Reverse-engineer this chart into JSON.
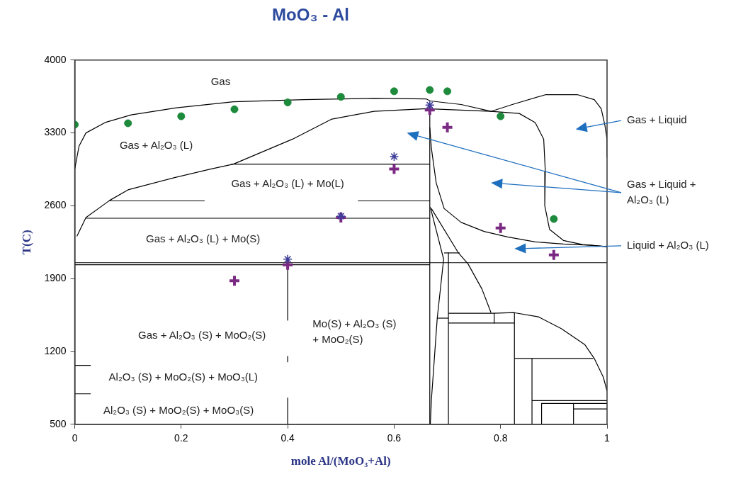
{
  "chart_data": {
    "type": "line",
    "title": "MoO₃ - Al",
    "xlabel": "mole Al/(MoO₃+Al)",
    "ylabel": "T(C)",
    "xlim": [
      0,
      1
    ],
    "xticks": [
      0,
      0.2,
      0.4,
      0.6,
      0.8,
      1
    ],
    "ylim": [
      500,
      4000
    ],
    "yticks": [
      500,
      1200,
      1900,
      2600,
      3300,
      4000
    ],
    "grid": false,
    "legend": false,
    "series": [
      {
        "color": "#000000",
        "x": [
          0,
          0.008,
          0.021,
          0.057,
          0.106,
          0.189,
          0.298,
          0.43,
          0.562,
          0.66,
          0.668,
          0.726,
          0.782,
          0.822,
          0.884,
          0.945,
          0.976,
          0.989,
          0.996,
          1,
          1
        ],
        "values": [
          2953,
          3173,
          3300,
          3400,
          3473,
          3540,
          3600,
          3620,
          3633,
          3627,
          3607,
          3573,
          3507,
          3573,
          3667,
          3667,
          3620,
          3533,
          3373,
          3240,
          3067
        ]
      },
      {
        "color": "#000000",
        "x": [
          0.004,
          0.021,
          0.066,
          0.1,
          0.189,
          0.255,
          0.298,
          0.409,
          0.483,
          0.562,
          0.66,
          0.782,
          0.835,
          0.865,
          0.881,
          0.884,
          0.883,
          0.892,
          0.918,
          0.954,
          1
        ],
        "values": [
          2307,
          2487,
          2653,
          2753,
          2873,
          2953,
          3000,
          3240,
          3433,
          3507,
          3533,
          3507,
          3487,
          3400,
          3240,
          2933,
          2600,
          2373,
          2267,
          2227,
          2207
        ]
      },
      {
        "color": "#000000",
        "x": [
          0.667,
          0.67,
          0.679,
          0.694,
          0.726,
          0.769,
          0.813,
          0.865,
          0.918,
          0.971,
          1
        ],
        "values": [
          3353,
          3153,
          2820,
          2573,
          2440,
          2353,
          2300,
          2253,
          2233,
          2220,
          2207
        ]
      },
      {
        "color": "#000000",
        "x": [
          0.294,
          0.667
        ],
        "values": [
          3000,
          3000
        ]
      },
      {
        "color": "#000000",
        "x": [
          0.063,
          0.244
        ],
        "values": [
          2647,
          2647
        ]
      },
      {
        "color": "#000000",
        "x": [
          0.532,
          0.667
        ],
        "values": [
          2647,
          2647
        ]
      },
      {
        "color": "#000000",
        "x": [
          0.021,
          0.667
        ],
        "values": [
          2480,
          2480
        ]
      },
      {
        "color": "#000000",
        "x": [
          0.667,
          0.667
        ],
        "values": [
          3533,
          500
        ]
      },
      {
        "color": "#000000",
        "x": [
          0,
          1
        ],
        "values": [
          2053,
          2053
        ]
      },
      {
        "color": "#000000",
        "x": [
          0,
          0.667
        ],
        "values": [
          2033,
          2033
        ]
      },
      {
        "color": "#000000",
        "x": [
          0.4,
          0.4
        ],
        "values": [
          2033,
          1500
        ]
      },
      {
        "color": "#000000",
        "x": [
          0.4,
          0.4
        ],
        "values": [
          1153,
          1100
        ]
      },
      {
        "color": "#000000",
        "x": [
          0.4,
          0.4
        ],
        "values": [
          753,
          500
        ]
      },
      {
        "color": "#000000",
        "x": [
          0,
          0.03
        ],
        "values": [
          1067,
          1067
        ]
      },
      {
        "color": "#000000",
        "x": [
          0,
          0.03
        ],
        "values": [
          793,
          793
        ]
      },
      {
        "color": "#000000",
        "x": [
          0.668,
          0.683,
          0.693,
          0.681,
          0.67,
          0.668
        ],
        "values": [
          2587,
          2287,
          2087,
          1520,
          733,
          500
        ]
      },
      {
        "color": "#000000",
        "x": [
          0.67,
          0.72,
          0.739,
          0.765,
          0.782
        ],
        "values": [
          2573,
          2153,
          2040,
          1800,
          1573
        ]
      },
      {
        "color": "#000000",
        "x": [
          0.694,
          0.723
        ],
        "values": [
          2147,
          2147
        ]
      },
      {
        "color": "#000000",
        "x": [
          0.702,
          0.702
        ],
        "values": [
          2147,
          500
        ]
      },
      {
        "color": "#000000",
        "x": [
          0.681,
          0.702
        ],
        "values": [
          1520,
          1520
        ]
      },
      {
        "color": "#000000",
        "x": [
          0.702,
          0.786,
          0.825,
          0.871,
          0.914,
          0.958,
          0.976,
          0.993,
          1
        ],
        "values": [
          1567,
          1567,
          1573,
          1533,
          1420,
          1267,
          1133,
          953,
          820
        ]
      },
      {
        "color": "#000000",
        "x": [
          0.702,
          0.826
        ],
        "values": [
          1473,
          1473
        ]
      },
      {
        "color": "#000000",
        "x": [
          0.788,
          0.788
        ],
        "values": [
          1567,
          1473
        ]
      },
      {
        "color": "#000000",
        "x": [
          0.826,
          0.826
        ],
        "values": [
          1573,
          500
        ]
      },
      {
        "color": "#000000",
        "x": [
          0.826,
          0.974
        ],
        "values": [
          1133,
          1133
        ]
      },
      {
        "color": "#000000",
        "x": [
          0.859,
          0.859
        ],
        "values": [
          1133,
          500
        ]
      },
      {
        "color": "#000000",
        "x": [
          0.859,
          1
        ],
        "values": [
          727,
          727
        ]
      },
      {
        "color": "#000000",
        "x": [
          0.877,
          0.877
        ],
        "values": [
          700,
          500
        ]
      },
      {
        "color": "#000000",
        "x": [
          0.877,
          1
        ],
        "values": [
          700,
          700
        ]
      },
      {
        "color": "#000000",
        "x": [
          0.937,
          0.937
        ],
        "values": [
          700,
          500
        ]
      },
      {
        "color": "#000000",
        "x": [
          0.937,
          1
        ],
        "values": [
          647,
          647
        ]
      },
      {
        "type": "scatter",
        "marker": "circle",
        "color": "#1e8a3c",
        "x": [
          0,
          0.1,
          0.2,
          0.3,
          0.4,
          0.5,
          0.6,
          0.667,
          0.7,
          0.8,
          0.9
        ],
        "values": [
          3380,
          3393,
          3460,
          3527,
          3593,
          3647,
          3700,
          3713,
          3700,
          3460,
          2473
        ]
      },
      {
        "type": "scatter",
        "marker": "cross",
        "color": "#7b2a83",
        "x": [
          0.667,
          0.7,
          0.6,
          0.5,
          0.8,
          0.9,
          0.4,
          0.3
        ],
        "values": [
          3520,
          3353,
          2953,
          2487,
          2387,
          2127,
          2033,
          1880
        ]
      },
      {
        "type": "scatter",
        "color": "#3d3d9a",
        "x": [
          0.667,
          0.6,
          0.5,
          0.4
        ],
        "values": [
          3567,
          3073,
          2500,
          2087
        ]
      }
    ],
    "annotations": [
      "Gas",
      "Gas + Al₂O₃ (L)",
      "Gas + Al₂O₃ (L) + Mo(L)",
      "Gas + Al₂O₃ (L) + Mo(S)",
      "Gas + Al₂O₃ (S) + MoO₂(S)",
      "Mo(S) + Al₂O₃ (S)\n+ MoO₂(S)",
      "Al₂O₃ (S) + MoO₂(S) + MoO₃(L)",
      "Al₂O₃ (S) + MoO₂(S) + MoO₃(S)",
      "Gas + Liquid",
      "Gas + Liquid +\nAl₂O₃ (L)",
      "Liquid + Al₂O₃ (L)"
    ]
  }
}
